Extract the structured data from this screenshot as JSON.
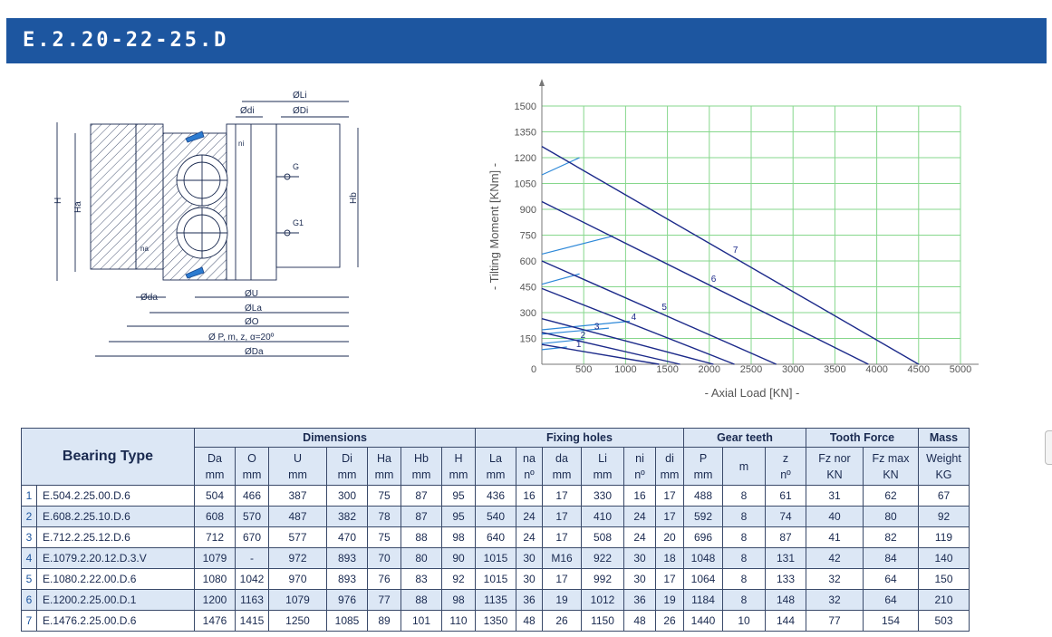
{
  "header": {
    "title": "E.2.20-22-25.D"
  },
  "drawing": {
    "labels": {
      "Li": "ØLi",
      "di": "Ødi",
      "Di": "ØDi",
      "ni": "ni",
      "G": "G",
      "G1": "G1",
      "H": "H",
      "Ha": "Ha",
      "Hb": "Hb",
      "na": "na",
      "da": "Øda",
      "U": "ØU",
      "La": "ØLa",
      "O": "ØO",
      "P": "Ø P, m, z, α=20º",
      "Da": "ØDa"
    }
  },
  "chart_data": {
    "type": "line",
    "xlabel": "-  Axial Load  [KN]  -",
    "ylabel": "-  Tilting Moment  [KNm]  -",
    "xlim": [
      0,
      5000
    ],
    "ylim": [
      0,
      1500
    ],
    "x_ticks": [
      0,
      500,
      1000,
      1500,
      2000,
      2500,
      3000,
      3500,
      4000,
      4500,
      5000
    ],
    "y_ticks": [
      150,
      300,
      450,
      600,
      750,
      900,
      1050,
      1200,
      1350,
      1500
    ],
    "grid": true,
    "grid_color": "#86d78c",
    "line_color": "#1c2a8a",
    "series": [
      {
        "name": "1",
        "x": [
          0,
          1400
        ],
        "y": [
          115,
          0
        ],
        "bolt_x": [
          0,
          300
        ],
        "bolt_y": [
          85,
          100
        ]
      },
      {
        "name": "2",
        "x": [
          0,
          1650
        ],
        "y": [
          185,
          0
        ],
        "bolt_x": [
          0,
          500
        ],
        "bolt_y": [
          120,
          145
        ]
      },
      {
        "name": "3",
        "x": [
          0,
          2050
        ],
        "y": [
          265,
          0
        ],
        "bolt_x": [
          0,
          800
        ],
        "bolt_y": [
          175,
          210
        ]
      },
      {
        "name": "4",
        "x": [
          0,
          2300
        ],
        "y": [
          440,
          0
        ],
        "bolt_x": [
          0,
          1050
        ],
        "bolt_y": [
          200,
          250
        ]
      },
      {
        "name": "5",
        "x": [
          0,
          2800
        ],
        "y": [
          600,
          0
        ],
        "bolt_x": [
          0,
          450
        ],
        "bolt_y": [
          465,
          525
        ]
      },
      {
        "name": "6",
        "x": [
          0,
          3900
        ],
        "y": [
          945,
          0
        ],
        "bolt_x": [
          0,
          850
        ],
        "bolt_y": [
          640,
          745
        ]
      },
      {
        "name": "7",
        "x": [
          0,
          4500
        ],
        "y": [
          1265,
          0
        ],
        "bolt_x": [
          0,
          450
        ],
        "bolt_y": [
          1100,
          1200
        ]
      }
    ]
  },
  "table": {
    "corner": "Bearing Type",
    "groups": [
      {
        "label": "Dimensions",
        "span": 7
      },
      {
        "label": "Fixing holes",
        "span": 6
      },
      {
        "label": "Gear teeth",
        "span": 3
      },
      {
        "label": "Tooth Force",
        "span": 2
      },
      {
        "label": "Mass",
        "span": 1
      }
    ],
    "columns": [
      [
        "Da",
        "mm"
      ],
      [
        "O",
        "mm"
      ],
      [
        "U",
        "mm"
      ],
      [
        "Di",
        "mm"
      ],
      [
        "Ha",
        "mm"
      ],
      [
        "Hb",
        "mm"
      ],
      [
        "H",
        "mm"
      ],
      [
        "La",
        "mm"
      ],
      [
        "na",
        "nº"
      ],
      [
        "da",
        "mm"
      ],
      [
        "Li",
        "mm"
      ],
      [
        "ni",
        "nº"
      ],
      [
        "di",
        "mm"
      ],
      [
        "P",
        "mm"
      ],
      [
        "m",
        ""
      ],
      [
        "z",
        "nº"
      ],
      [
        "Fz nor",
        "KN"
      ],
      [
        "Fz max",
        "KN"
      ],
      [
        "Weight",
        "KG"
      ]
    ],
    "col_widths": [
      44,
      36,
      63,
      44,
      36,
      44,
      36,
      44,
      28,
      42,
      46,
      34,
      30,
      42,
      46,
      44,
      62,
      60,
      55
    ],
    "rows": [
      {
        "n": "1",
        "name": "E.504.2.25.00.D.6",
        "v": [
          "504",
          "466",
          "387",
          "300",
          "75",
          "87",
          "95",
          "436",
          "16",
          "17",
          "330",
          "16",
          "17",
          "488",
          "8",
          "61",
          "31",
          "62",
          "67"
        ]
      },
      {
        "n": "2",
        "name": "E.608.2.25.10.D.6",
        "v": [
          "608",
          "570",
          "487",
          "382",
          "78",
          "87",
          "95",
          "540",
          "24",
          "17",
          "410",
          "24",
          "17",
          "592",
          "8",
          "74",
          "40",
          "80",
          "92"
        ]
      },
      {
        "n": "3",
        "name": "E.712.2.25.12.D.6",
        "v": [
          "712",
          "670",
          "577",
          "470",
          "75",
          "88",
          "98",
          "640",
          "24",
          "17",
          "508",
          "24",
          "20",
          "696",
          "8",
          "87",
          "41",
          "82",
          "119"
        ]
      },
      {
        "n": "4",
        "name": "E.1079.2.20.12.D.3.V",
        "v": [
          "1079",
          "-",
          "972",
          "893",
          "70",
          "80",
          "90",
          "1015",
          "30",
          "M16",
          "922",
          "30",
          "18",
          "1048",
          "8",
          "131",
          "42",
          "84",
          "140"
        ]
      },
      {
        "n": "5",
        "name": "E.1080.2.22.00.D.6",
        "v": [
          "1080",
          "1042",
          "970",
          "893",
          "76",
          "83",
          "92",
          "1015",
          "30",
          "17",
          "992",
          "30",
          "17",
          "1064",
          "8",
          "133",
          "32",
          "64",
          "150"
        ]
      },
      {
        "n": "6",
        "name": "E.1200.2.25.00.D.1",
        "v": [
          "1200",
          "1163",
          "1079",
          "976",
          "77",
          "88",
          "98",
          "1135",
          "36",
          "19",
          "1012",
          "36",
          "19",
          "1184",
          "8",
          "148",
          "32",
          "64",
          "210"
        ]
      },
      {
        "n": "7",
        "name": "E.1476.2.25.00.D.6",
        "v": [
          "1476",
          "1415",
          "1250",
          "1085",
          "89",
          "101",
          "110",
          "1350",
          "48",
          "26",
          "1150",
          "48",
          "26",
          "1440",
          "10",
          "144",
          "77",
          "154",
          "503"
        ]
      }
    ]
  }
}
